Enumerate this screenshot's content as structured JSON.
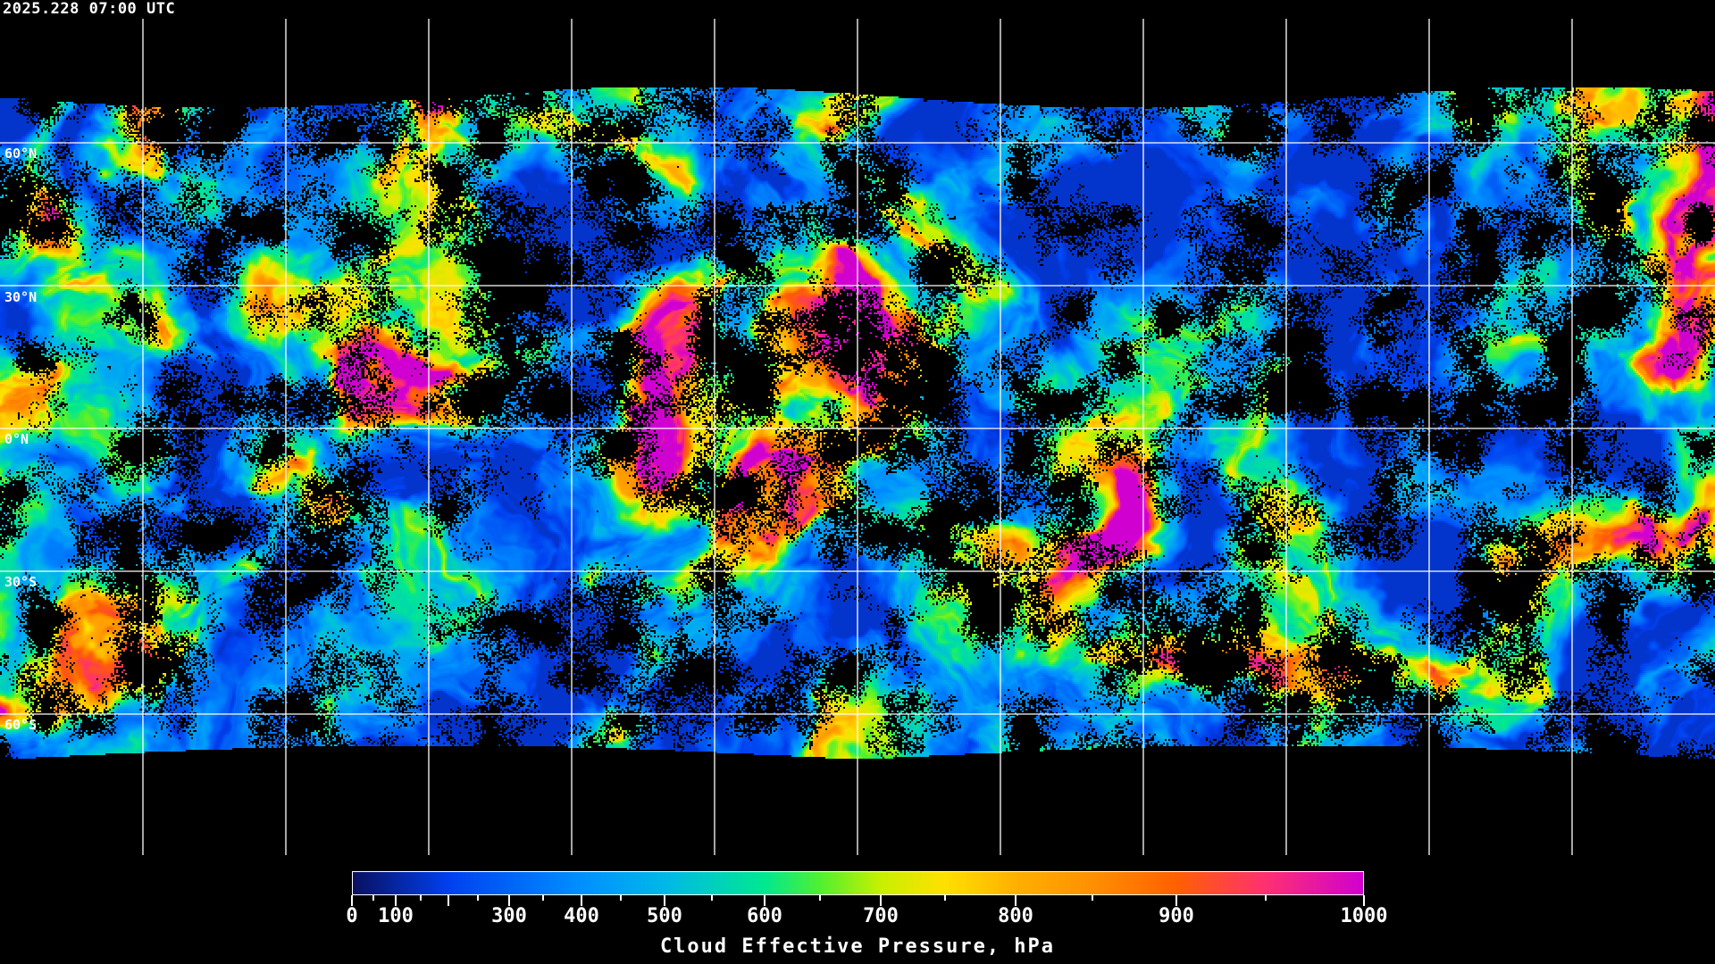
{
  "header": {
    "timestamp": "2025.228 07:00 UTC"
  },
  "map": {
    "projection": "equirectangular",
    "grid_spacing_deg": 30,
    "gridlines": true,
    "coastlines_color": "#ffffff",
    "background_color": "#000000",
    "lat_labels": [
      "60°N",
      "30°N",
      "0°N",
      "30°S",
      "60°S"
    ]
  },
  "colorbar": {
    "title": "Cloud Effective Pressure, hPa",
    "range": [
      0,
      1000
    ],
    "labels": [
      "0",
      "100",
      "300",
      "400",
      "500",
      "600",
      "700",
      "800",
      "900",
      "1000"
    ],
    "colors": [
      {
        "value": 0,
        "color": "#0a1060"
      },
      {
        "value": 200,
        "color": "#0040f0"
      },
      {
        "value": 400,
        "color": "#0090ff"
      },
      {
        "value": 500,
        "color": "#00b8e8"
      },
      {
        "value": 600,
        "color": "#00e890"
      },
      {
        "value": 650,
        "color": "#50f030"
      },
      {
        "value": 700,
        "color": "#c8f000"
      },
      {
        "value": 750,
        "color": "#ffe000"
      },
      {
        "value": 800,
        "color": "#ffb000"
      },
      {
        "value": 850,
        "color": "#ff9000"
      },
      {
        "value": 900,
        "color": "#ff6000"
      },
      {
        "value": 950,
        "color": "#ff3070"
      },
      {
        "value": 1000,
        "color": "#d000d0"
      }
    ]
  }
}
